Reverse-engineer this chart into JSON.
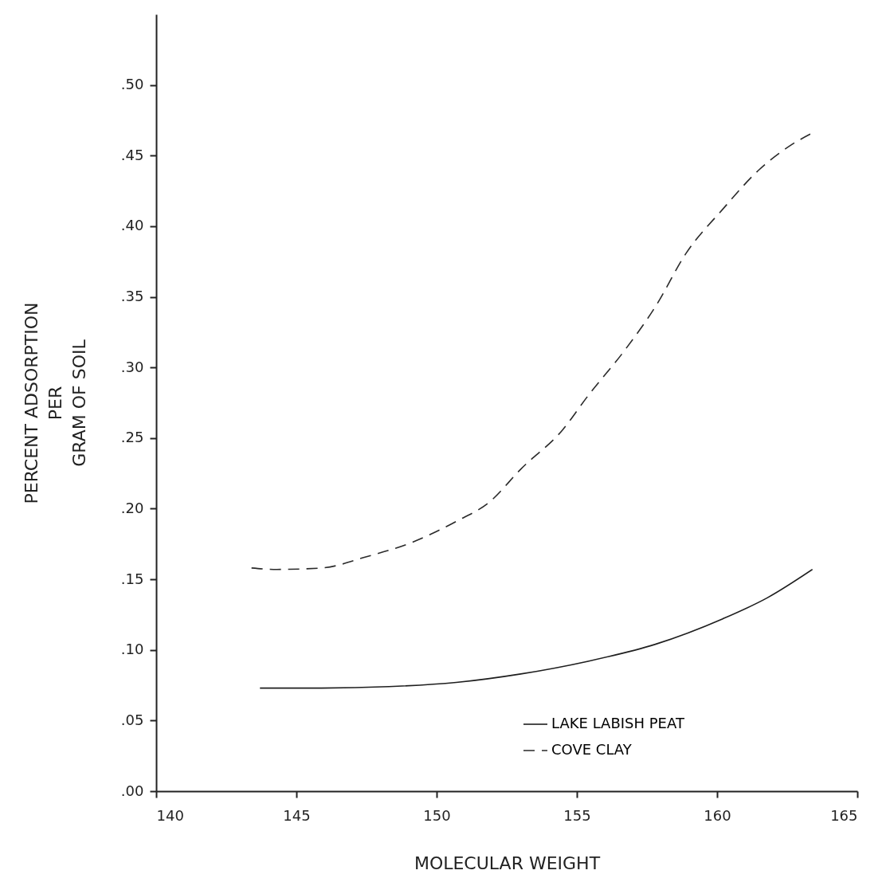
{
  "chart_data": {
    "type": "line",
    "xlabel": "MOLECULAR   WEIGHT",
    "ylabel": "PERCENT  ADSORPTION\nPER\nGRAM  OF  SOIL",
    "xlim": [
      140,
      165
    ],
    "xticks": [
      140,
      145,
      150,
      155,
      160,
      165
    ],
    "ylim": [
      0,
      0.55
    ],
    "yticks": [
      {
        "value": 0,
        "label": ".00"
      },
      {
        "value": 0.05,
        "label": ".05"
      },
      {
        "value": 0.1,
        "label": ".10"
      },
      {
        "value": 0.15,
        "label": ".15"
      },
      {
        "value": 0.2,
        "label": ".20"
      },
      {
        "value": 0.25,
        "label": ".25"
      },
      {
        "value": 0.3,
        "label": ".30"
      },
      {
        "value": 0.35,
        "label": ".35"
      },
      {
        "value": 0.4,
        "label": ".40"
      },
      {
        "value": 0.45,
        "label": ".45"
      },
      {
        "value": 0.5,
        "label": ".50"
      }
    ],
    "grid": false,
    "legend": "bottom right",
    "marker": "none",
    "series": [
      {
        "name": "LAKE  LABISH  PEAT",
        "color": "#1e1e1e",
        "line_style": "solid",
        "x": [
          143.7,
          145.9,
          148.3,
          150.7,
          153.0,
          155.4,
          157.8,
          160.2,
          161.8,
          163.4
        ],
        "values": [
          0.073,
          0.073,
          0.074,
          0.077,
          0.083,
          0.092,
          0.104,
          0.122,
          0.137,
          0.157
        ]
      },
      {
        "name": "COVE  CLAY",
        "color": "#2a2a2a",
        "line_style": "dashed",
        "x": [
          143.4,
          144.3,
          145.9,
          147.5,
          149.1,
          150.7,
          151.9,
          153.0,
          154.5,
          155.4,
          156.7,
          157.8,
          158.9,
          160.2,
          161.5,
          162.6,
          163.4
        ],
        "values": [
          0.158,
          0.157,
          0.158,
          0.166,
          0.176,
          0.191,
          0.205,
          0.228,
          0.256,
          0.28,
          0.312,
          0.343,
          0.381,
          0.412,
          0.44,
          0.457,
          0.466
        ]
      }
    ]
  }
}
